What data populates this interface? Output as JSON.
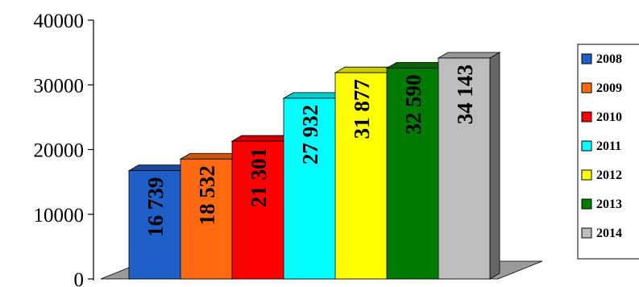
{
  "chart_data": {
    "type": "bar",
    "categories": [
      "2008",
      "2009",
      "2010",
      "2011",
      "2012",
      "2013",
      "2014"
    ],
    "values": [
      16739,
      18532,
      21301,
      27932,
      31877,
      32590,
      34143
    ],
    "data_labels": [
      "16 739",
      "18 532",
      "21 301",
      "27 932",
      "31 877",
      "32 590",
      "34 143"
    ],
    "colors": [
      "#1f5fc8",
      "#ff6a10",
      "#ff0000",
      "#00ffff",
      "#ffff00",
      "#007a00",
      "#bebebe"
    ],
    "yticks": [
      "0",
      "10000",
      "20000",
      "30000",
      "40000"
    ],
    "ylim": [
      0,
      40000
    ],
    "title": "",
    "xlabel": "",
    "ylabel": "",
    "legend_position": "right",
    "grid": false,
    "style": "3d-columns"
  }
}
